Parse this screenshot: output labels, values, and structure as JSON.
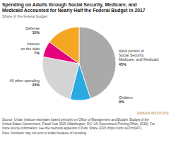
{
  "chart_data": {
    "type": "pie",
    "title": "Spending on Adults through Social Security, Medicare, and\nMedicaid Accounted for Nearly Half the Federal Budget in 2017",
    "subtitle": "Share of the federal budget",
    "categories": [
      "Adult portion of\nSocial Security,\nMedicare, and Medicaid",
      "Children",
      "All other spending",
      "Interest\non the debt",
      "Defense"
    ],
    "values": [
      45,
      9,
      24,
      7,
      15
    ],
    "value_labels": [
      "45%",
      "9%",
      "24%",
      "7%",
      "15%"
    ],
    "data_labels": true,
    "colors": [
      "#aaaaaa",
      "#29abe2",
      "#d4d4d4",
      "#e5007d",
      "#f5a623"
    ],
    "annotations": [
      "URBAN INSTITUTE",
      "Source: Urban Institute estimates based primarily on Office of Management and Budget, Budget of the\nUnited States Government, Fiscal Year 2019 (Washington, DC: US Government Printing Office, 2018). For\nmore source information, see the methods appendix in Kids' Share 2018 (https://urbn.is/2zry94T).\nNote: Numbers may not sum to totals because of rounding."
    ]
  }
}
